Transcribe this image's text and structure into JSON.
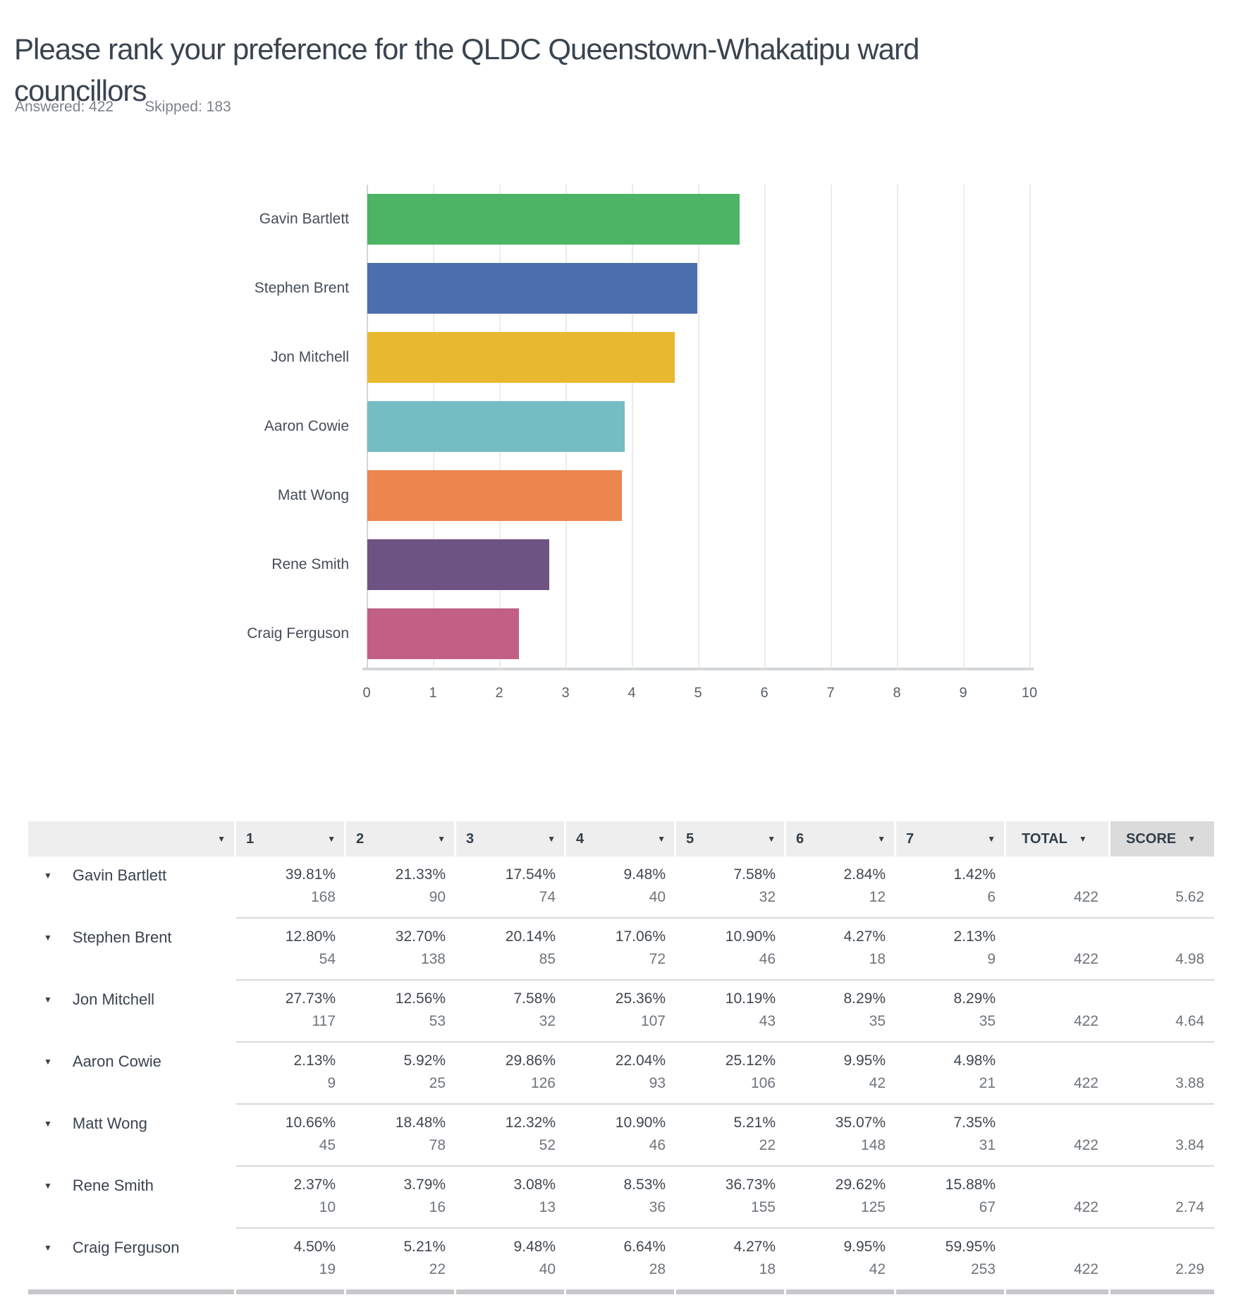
{
  "page": {
    "title": "Please rank your preference for the QLDC Queenstown-Whakatipu ward councillors",
    "answered_label": "Answered: 422",
    "skipped_label": "Skipped: 183"
  },
  "chart_data": {
    "type": "bar",
    "orientation": "horizontal",
    "title": "",
    "categories": [
      "Gavin Bartlett",
      "Stephen Brent",
      "Jon Mitchell",
      "Aaron Cowie",
      "Matt Wong",
      "Rene Smith",
      "Craig Ferguson"
    ],
    "values": [
      5.62,
      4.98,
      4.64,
      3.88,
      3.84,
      2.74,
      2.29
    ],
    "colors": [
      "#4cb464",
      "#4c6fae",
      "#e8b92e",
      "#74bdc2",
      "#ec854e",
      "#6d5382",
      "#c16084"
    ],
    "xlim": [
      0,
      10
    ],
    "x_ticks": [
      0,
      1,
      2,
      3,
      4,
      5,
      6,
      7,
      8,
      9,
      10
    ],
    "grid": true,
    "legend": "none"
  },
  "table": {
    "headers": [
      "",
      "1",
      "2",
      "3",
      "4",
      "5",
      "6",
      "7",
      "TOTAL",
      "SCORE"
    ],
    "rows": [
      {
        "name": "Gavin Bartlett",
        "cells": [
          {
            "pct": "39.81%",
            "count": "168"
          },
          {
            "pct": "21.33%",
            "count": "90"
          },
          {
            "pct": "17.54%",
            "count": "74"
          },
          {
            "pct": "9.48%",
            "count": "40"
          },
          {
            "pct": "7.58%",
            "count": "32"
          },
          {
            "pct": "2.84%",
            "count": "12"
          },
          {
            "pct": "1.42%",
            "count": "6"
          }
        ],
        "total": "422",
        "score": "5.62"
      },
      {
        "name": "Stephen Brent",
        "cells": [
          {
            "pct": "12.80%",
            "count": "54"
          },
          {
            "pct": "32.70%",
            "count": "138"
          },
          {
            "pct": "20.14%",
            "count": "85"
          },
          {
            "pct": "17.06%",
            "count": "72"
          },
          {
            "pct": "10.90%",
            "count": "46"
          },
          {
            "pct": "4.27%",
            "count": "18"
          },
          {
            "pct": "2.13%",
            "count": "9"
          }
        ],
        "total": "422",
        "score": "4.98"
      },
      {
        "name": "Jon Mitchell",
        "cells": [
          {
            "pct": "27.73%",
            "count": "117"
          },
          {
            "pct": "12.56%",
            "count": "53"
          },
          {
            "pct": "7.58%",
            "count": "32"
          },
          {
            "pct": "25.36%",
            "count": "107"
          },
          {
            "pct": "10.19%",
            "count": "43"
          },
          {
            "pct": "8.29%",
            "count": "35"
          },
          {
            "pct": "8.29%",
            "count": "35"
          }
        ],
        "total": "422",
        "score": "4.64"
      },
      {
        "name": "Aaron Cowie",
        "cells": [
          {
            "pct": "2.13%",
            "count": "9"
          },
          {
            "pct": "5.92%",
            "count": "25"
          },
          {
            "pct": "29.86%",
            "count": "126"
          },
          {
            "pct": "22.04%",
            "count": "93"
          },
          {
            "pct": "25.12%",
            "count": "106"
          },
          {
            "pct": "9.95%",
            "count": "42"
          },
          {
            "pct": "4.98%",
            "count": "21"
          }
        ],
        "total": "422",
        "score": "3.88"
      },
      {
        "name": "Matt Wong",
        "cells": [
          {
            "pct": "10.66%",
            "count": "45"
          },
          {
            "pct": "18.48%",
            "count": "78"
          },
          {
            "pct": "12.32%",
            "count": "52"
          },
          {
            "pct": "10.90%",
            "count": "46"
          },
          {
            "pct": "5.21%",
            "count": "22"
          },
          {
            "pct": "35.07%",
            "count": "148"
          },
          {
            "pct": "7.35%",
            "count": "31"
          }
        ],
        "total": "422",
        "score": "3.84"
      },
      {
        "name": "Rene Smith",
        "cells": [
          {
            "pct": "2.37%",
            "count": "10"
          },
          {
            "pct": "3.79%",
            "count": "16"
          },
          {
            "pct": "3.08%",
            "count": "13"
          },
          {
            "pct": "8.53%",
            "count": "36"
          },
          {
            "pct": "36.73%",
            "count": "155"
          },
          {
            "pct": "29.62%",
            "count": "125"
          },
          {
            "pct": "15.88%",
            "count": "67"
          }
        ],
        "total": "422",
        "score": "2.74"
      },
      {
        "name": "Craig Ferguson",
        "cells": [
          {
            "pct": "4.50%",
            "count": "19"
          },
          {
            "pct": "5.21%",
            "count": "22"
          },
          {
            "pct": "9.48%",
            "count": "40"
          },
          {
            "pct": "6.64%",
            "count": "28"
          },
          {
            "pct": "4.27%",
            "count": "18"
          },
          {
            "pct": "9.95%",
            "count": "42"
          },
          {
            "pct": "59.95%",
            "count": "253"
          }
        ],
        "total": "422",
        "score": "2.29"
      }
    ]
  },
  "icons": {
    "sort_dropdown": "▼",
    "row_expand": "▼"
  }
}
